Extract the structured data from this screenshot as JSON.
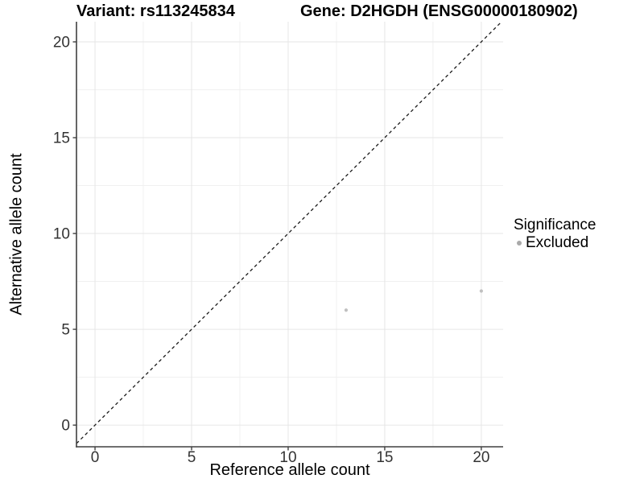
{
  "titles": {
    "left": "Variant: rs113245834",
    "right": "Gene: D2HGDH (ENSG00000180902)"
  },
  "chart_data": {
    "type": "scatter",
    "title": "Variant: rs113245834   Gene: D2HGDH (ENSG00000180902)",
    "xlabel": "Reference allele count",
    "ylabel": "Alternative allele count",
    "xlim": [
      -0.96,
      21.13
    ],
    "ylim": [
      -1.13,
      21.05
    ],
    "xticks": [
      0,
      5,
      10,
      15,
      20
    ],
    "yticks": [
      0,
      5,
      10,
      15,
      20
    ],
    "grid": "major and minor, minor at 2.5 intervals",
    "series": [
      {
        "name": "Excluded",
        "points": [
          {
            "x": 13,
            "y": 6
          },
          {
            "x": 20,
            "y": 7
          }
        ]
      }
    ],
    "reference_line": {
      "kind": "identity y=x",
      "style": "dashed",
      "color": "#1a1a1a"
    },
    "legend": {
      "title": "Significance",
      "position": "right",
      "entries": [
        {
          "label": "Excluded",
          "color": "#a9a9a9"
        }
      ]
    },
    "colors": {
      "point": "#c0c0c0",
      "axis": "#404040",
      "tick_label": "#333333",
      "grid_major": "#e6e6e6",
      "grid_minor": "#f0f0f0",
      "background": "#ffffff"
    }
  }
}
